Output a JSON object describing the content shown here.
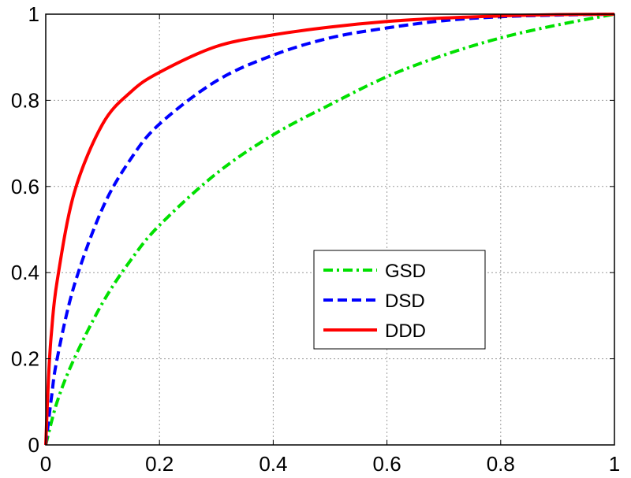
{
  "chart_data": {
    "type": "line",
    "title": "",
    "xlabel": "",
    "ylabel": "",
    "xlim": [
      0,
      1
    ],
    "ylim": [
      0,
      1
    ],
    "x_ticks": [
      "0",
      "0.2",
      "0.4",
      "0.6",
      "0.8",
      "1"
    ],
    "y_ticks": [
      "0",
      "0.2",
      "0.4",
      "0.6",
      "0.8",
      "1"
    ],
    "x_tick_values": [
      0,
      0.2,
      0.4,
      0.6,
      0.8,
      1
    ],
    "y_tick_values": [
      0,
      0.2,
      0.4,
      0.6,
      0.8,
      1
    ],
    "grid": true,
    "legend_position": "lower-center-right",
    "series": [
      {
        "name": "GSD",
        "color": "#00e000",
        "style": "dash-dot",
        "x": [
          0,
          0.02,
          0.05,
          0.1,
          0.15,
          0.2,
          0.3,
          0.4,
          0.5,
          0.6,
          0.7,
          0.8,
          0.9,
          1.0
        ],
        "y": [
          0,
          0.1,
          0.2,
          0.33,
          0.43,
          0.51,
          0.63,
          0.72,
          0.79,
          0.855,
          0.905,
          0.945,
          0.975,
          1.0
        ]
      },
      {
        "name": "DSD",
        "color": "#0000ff",
        "style": "dashed",
        "x": [
          0,
          0.01,
          0.02,
          0.05,
          0.1,
          0.15,
          0.2,
          0.3,
          0.4,
          0.5,
          0.6,
          0.7,
          0.8,
          0.9,
          1.0
        ],
        "y": [
          0,
          0.11,
          0.2,
          0.37,
          0.55,
          0.665,
          0.745,
          0.845,
          0.905,
          0.945,
          0.968,
          0.985,
          0.994,
          0.998,
          1.0
        ]
      },
      {
        "name": "DDD",
        "color": "#ff0000",
        "style": "solid",
        "x": [
          0,
          0.005,
          0.01,
          0.02,
          0.05,
          0.1,
          0.15,
          0.2,
          0.3,
          0.4,
          0.5,
          0.6,
          0.7,
          0.8,
          0.9,
          1.0
        ],
        "y": [
          0,
          0.16,
          0.26,
          0.38,
          0.585,
          0.745,
          0.82,
          0.865,
          0.925,
          0.952,
          0.97,
          0.983,
          0.991,
          0.996,
          0.999,
          1.0
        ]
      }
    ]
  }
}
